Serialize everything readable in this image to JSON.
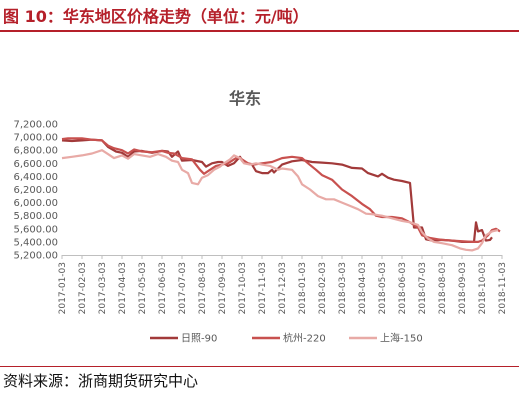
{
  "figure_title": "图 10：华东地区价格走势（单位：元/吨）",
  "source": "资料来源：浙商期货研究中心",
  "chart_data": {
    "type": "line",
    "title": "华东",
    "xlabel": "",
    "ylabel": "",
    "ylim": [
      5200,
      7200
    ],
    "y_ticks": [
      "5,200.00",
      "5,400.00",
      "5,600.00",
      "5,800.00",
      "6,000.00",
      "6,200.00",
      "6,400.00",
      "6,600.00",
      "6,800.00",
      "7,000.00",
      "7,200.00"
    ],
    "x_ticks": [
      "2017-01-03",
      "2017-02-03",
      "2017-03-03",
      "2017-04-03",
      "2017-05-03",
      "2017-06-03",
      "2017-07-03",
      "2017-08-03",
      "2017-09-03",
      "2017-10-03",
      "2017-11-03",
      "2017-12-03",
      "2018-01-03",
      "2018-02-03",
      "2018-03-03",
      "2018-04-03",
      "2018-05-03",
      "2018-06-03",
      "2018-07-03",
      "2018-08-03",
      "2018-09-03",
      "2018-10-03",
      "2018-11-03"
    ],
    "grid": false,
    "legend": "bottom",
    "series": [
      {
        "name": "日照-90",
        "color": "#a23a3a",
        "points": [
          [
            0,
            6950
          ],
          [
            0.5,
            6940
          ],
          [
            1,
            6950
          ],
          [
            1.5,
            6960
          ],
          [
            2,
            6950
          ],
          [
            2.3,
            6850
          ],
          [
            2.7,
            6780
          ],
          [
            3,
            6760
          ],
          [
            3.3,
            6700
          ],
          [
            3.6,
            6780
          ],
          [
            4,
            6790
          ],
          [
            4.5,
            6760
          ],
          [
            5,
            6790
          ],
          [
            5.3,
            6780
          ],
          [
            5.5,
            6700
          ],
          [
            5.8,
            6780
          ],
          [
            6,
            6640
          ],
          [
            6.5,
            6650
          ],
          [
            7,
            6620
          ],
          [
            7.2,
            6550
          ],
          [
            7.5,
            6600
          ],
          [
            7.8,
            6620
          ],
          [
            8,
            6620
          ],
          [
            8.3,
            6560
          ],
          [
            8.6,
            6600
          ],
          [
            8.9,
            6700
          ],
          [
            9,
            6640
          ],
          [
            9.2,
            6600
          ],
          [
            9.5,
            6580
          ],
          [
            9.7,
            6480
          ],
          [
            10,
            6450
          ],
          [
            10.3,
            6450
          ],
          [
            10.5,
            6500
          ],
          [
            10.6,
            6460
          ],
          [
            11,
            6580
          ],
          [
            11.5,
            6630
          ],
          [
            12,
            6650
          ],
          [
            12.5,
            6620
          ],
          [
            13,
            6610
          ],
          [
            13.5,
            6600
          ],
          [
            14,
            6580
          ],
          [
            14.5,
            6530
          ],
          [
            15,
            6520
          ],
          [
            15.3,
            6450
          ],
          [
            15.8,
            6400
          ],
          [
            16,
            6440
          ],
          [
            16.3,
            6380
          ],
          [
            16.6,
            6350
          ],
          [
            17,
            6330
          ],
          [
            17.4,
            6300
          ],
          [
            17.6,
            5620
          ],
          [
            18,
            5620
          ],
          [
            18.2,
            5440
          ],
          [
            18.5,
            5420
          ],
          [
            19,
            5430
          ],
          [
            19.5,
            5420
          ],
          [
            20,
            5400
          ],
          [
            20.6,
            5400
          ],
          [
            20.7,
            5700
          ],
          [
            20.8,
            5560
          ],
          [
            21,
            5580
          ],
          [
            21.2,
            5420
          ],
          [
            21.4,
            5430
          ],
          [
            21.5,
            5470
          ]
        ]
      },
      {
        "name": "杭州-220",
        "color": "#c8514f",
        "points": [
          [
            0,
            6970
          ],
          [
            0.3,
            6980
          ],
          [
            1,
            6980
          ],
          [
            1.5,
            6960
          ],
          [
            2,
            6950
          ],
          [
            2.3,
            6870
          ],
          [
            2.6,
            6830
          ],
          [
            3,
            6800
          ],
          [
            3.3,
            6750
          ],
          [
            3.6,
            6810
          ],
          [
            4,
            6780
          ],
          [
            4.5,
            6770
          ],
          [
            5,
            6790
          ],
          [
            5.3,
            6760
          ],
          [
            5.6,
            6750
          ],
          [
            5.9,
            6700
          ],
          [
            6,
            6680
          ],
          [
            6.5,
            6660
          ],
          [
            6.9,
            6500
          ],
          [
            7.1,
            6440
          ],
          [
            7.4,
            6500
          ],
          [
            7.7,
            6560
          ],
          [
            8,
            6580
          ],
          [
            8.3,
            6600
          ],
          [
            8.7,
            6680
          ],
          [
            8.9,
            6680
          ],
          [
            9,
            6660
          ],
          [
            9.3,
            6600
          ],
          [
            9.6,
            6580
          ],
          [
            10,
            6600
          ],
          [
            10.5,
            6620
          ],
          [
            11,
            6680
          ],
          [
            11.5,
            6700
          ],
          [
            12,
            6680
          ],
          [
            12.3,
            6600
          ],
          [
            12.7,
            6500
          ],
          [
            13,
            6420
          ],
          [
            13.5,
            6350
          ],
          [
            14,
            6200
          ],
          [
            14.5,
            6100
          ],
          [
            15,
            5980
          ],
          [
            15.4,
            5900
          ],
          [
            15.7,
            5800
          ],
          [
            16,
            5780
          ],
          [
            16.5,
            5780
          ],
          [
            17,
            5760
          ],
          [
            17.4,
            5700
          ],
          [
            17.8,
            5620
          ],
          [
            18,
            5500
          ],
          [
            18.4,
            5460
          ],
          [
            18.8,
            5440
          ],
          [
            19,
            5430
          ],
          [
            19.5,
            5420
          ],
          [
            20,
            5410
          ],
          [
            20.5,
            5400
          ],
          [
            20.8,
            5400
          ],
          [
            21,
            5420
          ],
          [
            21.3,
            5500
          ],
          [
            21.5,
            5580
          ],
          [
            21.7,
            5600
          ],
          [
            21.9,
            5560
          ]
        ]
      },
      {
        "name": "上海-150",
        "color": "#e8aaa6",
        "points": [
          [
            0,
            6680
          ],
          [
            0.5,
            6700
          ],
          [
            1,
            6720
          ],
          [
            1.5,
            6750
          ],
          [
            2,
            6800
          ],
          [
            2.3,
            6740
          ],
          [
            2.6,
            6680
          ],
          [
            3,
            6720
          ],
          [
            3.3,
            6670
          ],
          [
            3.6,
            6740
          ],
          [
            4,
            6720
          ],
          [
            4.4,
            6700
          ],
          [
            4.8,
            6740
          ],
          [
            5.2,
            6700
          ],
          [
            5.5,
            6640
          ],
          [
            5.8,
            6620
          ],
          [
            6,
            6500
          ],
          [
            6.3,
            6450
          ],
          [
            6.5,
            6300
          ],
          [
            6.8,
            6280
          ],
          [
            7,
            6380
          ],
          [
            7.3,
            6420
          ],
          [
            7.6,
            6500
          ],
          [
            7.9,
            6550
          ],
          [
            8.1,
            6600
          ],
          [
            8.4,
            6660
          ],
          [
            8.6,
            6720
          ],
          [
            8.9,
            6680
          ],
          [
            9.1,
            6600
          ],
          [
            9.4,
            6580
          ],
          [
            9.7,
            6600
          ],
          [
            10,
            6580
          ],
          [
            10.4,
            6560
          ],
          [
            10.8,
            6500
          ],
          [
            11,
            6520
          ],
          [
            11.5,
            6500
          ],
          [
            11.8,
            6400
          ],
          [
            12,
            6280
          ],
          [
            12.4,
            6200
          ],
          [
            12.8,
            6100
          ],
          [
            13.2,
            6050
          ],
          [
            13.6,
            6050
          ],
          [
            14,
            6000
          ],
          [
            14.4,
            5950
          ],
          [
            14.8,
            5900
          ],
          [
            15.2,
            5830
          ],
          [
            15.6,
            5820
          ],
          [
            16,
            5800
          ],
          [
            16.5,
            5760
          ],
          [
            17,
            5720
          ],
          [
            17.4,
            5700
          ],
          [
            17.8,
            5660
          ],
          [
            18,
            5550
          ],
          [
            18.3,
            5450
          ],
          [
            18.6,
            5400
          ],
          [
            19,
            5380
          ],
          [
            19.5,
            5350
          ],
          [
            19.9,
            5300
          ],
          [
            20.2,
            5280
          ],
          [
            20.5,
            5270
          ],
          [
            20.8,
            5300
          ],
          [
            21,
            5380
          ],
          [
            21.2,
            5500
          ],
          [
            21.5,
            5560
          ],
          [
            21.8,
            5580
          ]
        ]
      }
    ]
  }
}
